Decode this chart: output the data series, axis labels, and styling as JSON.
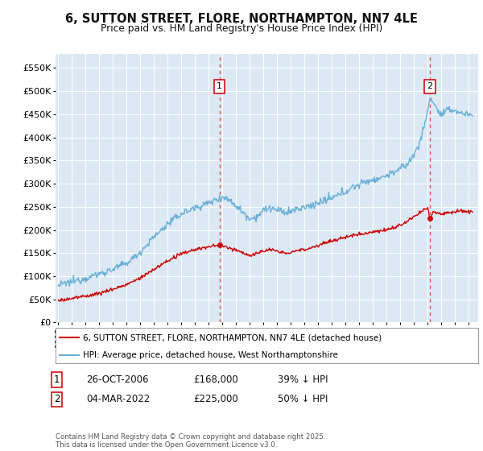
{
  "title": "6, SUTTON STREET, FLORE, NORTHAMPTON, NN7 4LE",
  "subtitle": "Price paid vs. HM Land Registry's House Price Index (HPI)",
  "ylabel_ticks": [
    "£0",
    "£50K",
    "£100K",
    "£150K",
    "£200K",
    "£250K",
    "£300K",
    "£350K",
    "£400K",
    "£450K",
    "£500K",
    "£550K"
  ],
  "ytick_vals": [
    0,
    50000,
    100000,
    150000,
    200000,
    250000,
    300000,
    350000,
    400000,
    450000,
    500000,
    550000
  ],
  "ylim": [
    0,
    580000
  ],
  "hpi_color": "#6aafd6",
  "price_color": "#cc0000",
  "dashed_color": "#e05050",
  "bg_color": "#dce9f5",
  "sale1_x": 2006.79,
  "sale1_price": 168000,
  "sale1_label": "39% ↓ HPI",
  "sale1_date": "26-OCT-2006",
  "sale2_x": 2022.17,
  "sale2_price": 225000,
  "sale2_label": "50% ↓ HPI",
  "sale2_date": "04-MAR-2022",
  "legend_line1": "6, SUTTON STREET, FLORE, NORTHAMPTON, NN7 4LE (detached house)",
  "legend_line2": "HPI: Average price, detached house, West Northamptonshire",
  "footer": "Contains HM Land Registry data © Crown copyright and database right 2025.\nThis data is licensed under the Open Government Licence v3.0.",
  "xstart_year": 1995.0,
  "xend_year": 2025.5,
  "xlim_left": 1994.8,
  "xlim_right": 2025.7
}
